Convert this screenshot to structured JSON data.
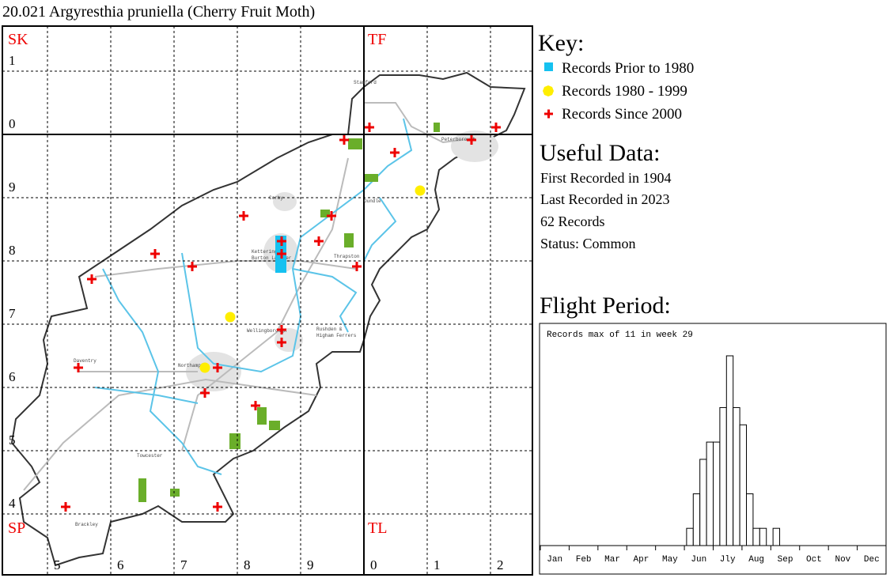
{
  "title": "20.021 Argyresthia pruniella (Cherry Fruit Moth)",
  "map": {
    "regions": [
      "SK",
      "TF",
      "SP",
      "TL"
    ],
    "row_labels": [
      "1",
      "0",
      "9",
      "8",
      "7",
      "6",
      "5",
      "4"
    ],
    "col_labels": [
      "5",
      "6",
      "7",
      "8",
      "9",
      "0",
      "1",
      "2"
    ],
    "towns": [
      "Stamford",
      "Peterborough",
      "Corby",
      "Oundle",
      "Kettering &",
      "Burton Latimer",
      "Thrapston",
      "Wellingborough",
      "Rushden &",
      "Higham Ferrers",
      "Daventry",
      "Northampton",
      "Towcester",
      "Brackley"
    ]
  },
  "key": {
    "heading": "Key:",
    "items": [
      "Records Prior to 1980",
      "Records 1980 - 1999",
      "Records Since 2000"
    ]
  },
  "useful_data": {
    "heading": "Useful Data:",
    "lines": [
      "First Recorded in 1904",
      "Last Recorded in 2023",
      "62 Records",
      "Status: Common"
    ]
  },
  "flight_period": {
    "heading": "Flight Period:"
  },
  "chart_data": {
    "type": "bar",
    "annotation": "Records max of 11 in week 29",
    "month_labels": [
      "Jan",
      "Feb",
      "Mar",
      "Apr",
      "May",
      "Jun",
      "Jly",
      "Aug",
      "Sep",
      "Oct",
      "Nov",
      "Dec"
    ],
    "values": [
      0,
      0,
      0,
      0,
      0,
      0,
      0,
      0,
      0,
      0,
      0,
      0,
      0,
      0,
      0,
      0,
      0,
      0,
      0,
      0,
      0,
      0,
      1,
      3,
      5,
      6,
      6,
      8,
      11,
      8,
      7,
      3,
      1,
      1,
      0,
      1,
      0,
      0,
      0,
      0,
      0,
      0,
      0,
      0,
      0,
      0,
      0,
      0,
      0,
      0,
      0,
      0
    ]
  }
}
